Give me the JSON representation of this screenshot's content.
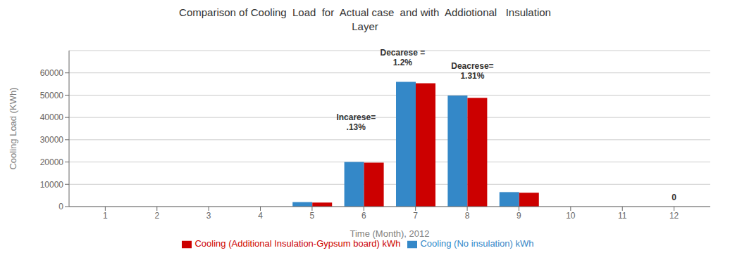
{
  "chart_data": {
    "type": "bar",
    "title": "Comparison of Cooling  Load  for  Actual case  and with  Addiotional   Insulation\nLayer",
    "xlabel": "Time  (Month), 2012",
    "ylabel": "Cooling Load (KWh)",
    "x": [
      1,
      2,
      3,
      4,
      5,
      6,
      7,
      8,
      9,
      10,
      11,
      12
    ],
    "xlim": [
      0.3,
      12.7
    ],
    "xticks": [
      1,
      2,
      3,
      4,
      5,
      6,
      7,
      8,
      9,
      10,
      11,
      12
    ],
    "ylim": [
      0,
      70000
    ],
    "yticks": [
      0,
      10000,
      20000,
      30000,
      40000,
      50000,
      60000
    ],
    "grid": true,
    "legend": "bottom",
    "series": [
      {
        "name": "Cooling (No insulation) kWh",
        "color": "#3488C8",
        "values": [
          0,
          0,
          0,
          0,
          2000,
          20000,
          56000,
          49800,
          6500,
          0,
          0,
          0
        ]
      },
      {
        "name": "Cooling (Additional Insulation-Gypsum board) kWh",
        "color": "#CC0000",
        "values": [
          0,
          0,
          0,
          0,
          1800,
          19700,
          55300,
          48800,
          6200,
          0,
          0,
          0
        ]
      }
    ],
    "annotations": [
      {
        "text": "Incarese=\n.13%",
        "x": 5.85,
        "y": 33000
      },
      {
        "text": "Decarese =\n1.2%",
        "x": 6.75,
        "y": 62000
      },
      {
        "text": "Deacrese=\n1.31%",
        "x": 8.1,
        "y": 56000
      },
      {
        "text": "0",
        "x": 12,
        "y": 1500
      }
    ]
  }
}
